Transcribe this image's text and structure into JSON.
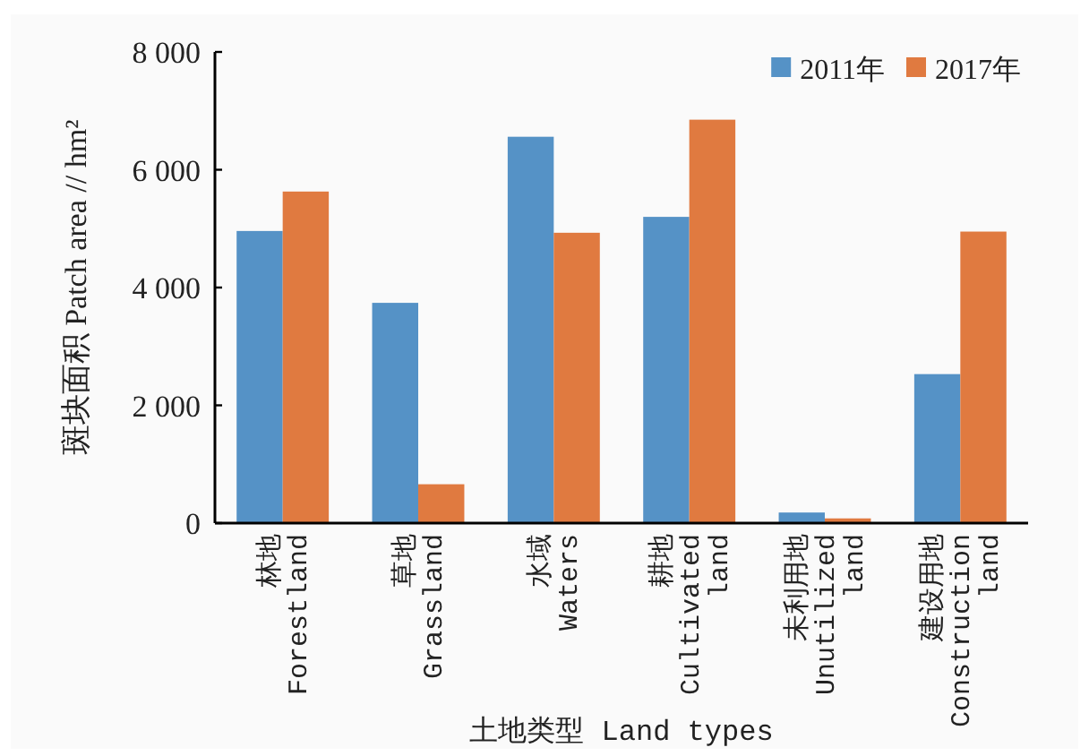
{
  "chart_data": {
    "type": "bar",
    "xlabel": "土地类型 Land types",
    "ylabel": "斑块面积 Patch area // hm²",
    "categories": [
      "林地 Forestland",
      "草地 Grassland",
      "水域 Waters",
      "耕地 Cultivated land",
      "未利用地 Unutilized land",
      "建设用地 Construction land"
    ],
    "series": [
      {
        "name": "2011年",
        "color": "#5592c6",
        "values": [
          4960,
          3740,
          6560,
          5200,
          180,
          2530
        ]
      },
      {
        "name": "2017年",
        "color": "#e07a40",
        "values": [
          5630,
          660,
          4930,
          6850,
          80,
          4950
        ]
      }
    ],
    "ylim": [
      0,
      8000
    ],
    "yticks": [
      0,
      {
        "value": 2000,
        "label": "2 000"
      },
      {
        "value": 4000,
        "label": "4 000"
      },
      {
        "value": 6000,
        "label": "6 000"
      },
      {
        "value": 8000,
        "label": "8 000"
      }
    ],
    "legend": "top right"
  }
}
